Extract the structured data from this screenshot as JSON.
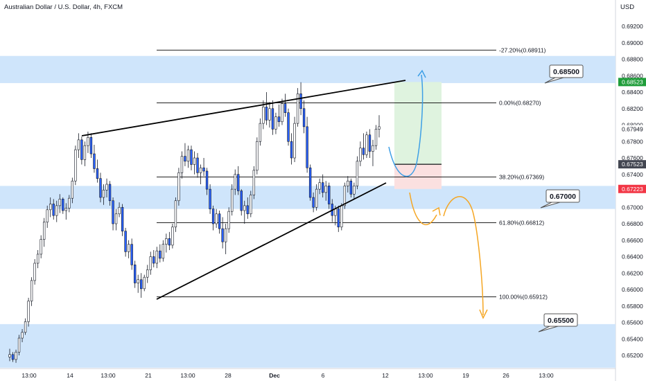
{
  "header": {
    "title": "Australian Dollar / U.S. Dollar, 4h, FXCM",
    "currency": "USD"
  },
  "colors": {
    "zone": "#cfe5fb",
    "up": "#ffffff",
    "down": "#2962ff",
    "wick": "#131722",
    "target_zone": "#dff3df",
    "stop_zone": "#fbe0e0",
    "projection_blue": "#3d9fe6",
    "projection_orange": "#f5a623",
    "price_green": "#1f9d3a",
    "price_red": "#f23645",
    "price_dark": "#434651",
    "axis_text": "#131722",
    "fib_line": "#000000"
  },
  "chart_data": {
    "type": "candlestick",
    "title": "Australian Dollar / U.S. Dollar, 4h, FXCM",
    "ylim": [
      0.651,
      0.6937
    ],
    "y_ticks": [
      "0.69200",
      "0.69000",
      "0.68800",
      "0.68600",
      "0.68400",
      "0.68200",
      "0.68000",
      "0.67800",
      "0.67600",
      "0.67400",
      "0.67200",
      "0.67000",
      "0.66800",
      "0.66600",
      "0.66400",
      "0.66200",
      "0.66000",
      "0.65800",
      "0.65600",
      "0.65400",
      "0.65200"
    ],
    "x_ticks": [
      "13:00",
      "14",
      "13:00",
      "21",
      "13:00",
      "28",
      "Dec",
      "6",
      "12",
      "13:00",
      "19",
      "26",
      "13:00"
    ],
    "x_ticks_bold": [
      "Dec"
    ],
    "zones": [
      {
        "label": "0.68500",
        "from": 0.6851,
        "to": 0.6884
      },
      {
        "label": "0.67000",
        "from": 0.6698,
        "to": 0.6726
      },
      {
        "label": "0.65500",
        "from": 0.6505,
        "to": 0.6558
      }
    ],
    "fibonacci": [
      {
        "label": "-27.20%(0.68911)",
        "price": 0.68911
      },
      {
        "label": "0.00%(0.68270)",
        "price": 0.6827
      },
      {
        "label": "38.20%(0.67369)",
        "price": 0.67369
      },
      {
        "label": "61.80%(0.66812)",
        "price": 0.66812
      },
      {
        "label": "100.00%(0.65912)",
        "price": 0.65912
      }
    ],
    "price_tags": [
      {
        "label": "0.68523",
        "price": 0.68523,
        "style": "green"
      },
      {
        "label": "0.67949",
        "price": 0.67949,
        "style": "plain"
      },
      {
        "label": "0.67523",
        "price": 0.67523,
        "style": "dark"
      },
      {
        "label": "0.67223",
        "price": 0.67223,
        "style": "red"
      }
    ],
    "position": {
      "entry": 0.67523,
      "target": 0.68523,
      "stop": 0.67223
    },
    "wedge": {
      "upper": [
        [
          0.6887,
          0.6852
        ]
      ],
      "lower": [
        [
          0.6588,
          0.6727
        ]
      ]
    },
    "candles": [
      [
        0.6518,
        0.6528,
        0.6513,
        0.6521
      ],
      [
        0.6521,
        0.6524,
        0.6512,
        0.6515
      ],
      [
        0.6515,
        0.6527,
        0.6511,
        0.6524
      ],
      [
        0.6524,
        0.6545,
        0.652,
        0.6541
      ],
      [
        0.6541,
        0.6552,
        0.6536,
        0.6548
      ],
      [
        0.6548,
        0.6565,
        0.6545,
        0.6561
      ],
      [
        0.6561,
        0.659,
        0.6555,
        0.6586
      ],
      [
        0.6586,
        0.6615,
        0.658,
        0.6611
      ],
      [
        0.6611,
        0.6637,
        0.6606,
        0.6632
      ],
      [
        0.6632,
        0.6648,
        0.6626,
        0.6643
      ],
      [
        0.6643,
        0.6666,
        0.6638,
        0.6661
      ],
      [
        0.6661,
        0.6687,
        0.6652,
        0.6682
      ],
      [
        0.6682,
        0.6702,
        0.6675,
        0.6697
      ],
      [
        0.6697,
        0.6712,
        0.6688,
        0.6704
      ],
      [
        0.6704,
        0.671,
        0.6685,
        0.669
      ],
      [
        0.669,
        0.6708,
        0.6682,
        0.6702
      ],
      [
        0.6702,
        0.6716,
        0.6693,
        0.671
      ],
      [
        0.671,
        0.6712,
        0.6692,
        0.6696
      ],
      [
        0.6696,
        0.6705,
        0.6685,
        0.6699
      ],
      [
        0.6699,
        0.6715,
        0.6694,
        0.6711
      ],
      [
        0.6711,
        0.6736,
        0.6705,
        0.6732
      ],
      [
        0.6732,
        0.6775,
        0.6727,
        0.677
      ],
      [
        0.677,
        0.679,
        0.676,
        0.6782
      ],
      [
        0.6782,
        0.6786,
        0.6752,
        0.6758
      ],
      [
        0.6758,
        0.678,
        0.675,
        0.6775
      ],
      [
        0.6775,
        0.6792,
        0.6766,
        0.6785
      ],
      [
        0.6785,
        0.679,
        0.676,
        0.6765
      ],
      [
        0.6765,
        0.6776,
        0.6742,
        0.6747
      ],
      [
        0.6747,
        0.6758,
        0.673,
        0.6735
      ],
      [
        0.6735,
        0.6742,
        0.6706,
        0.6712
      ],
      [
        0.6712,
        0.6728,
        0.6703,
        0.6721
      ],
      [
        0.6721,
        0.6735,
        0.6712,
        0.6728
      ],
      [
        0.6728,
        0.6732,
        0.6702,
        0.6708
      ],
      [
        0.6708,
        0.6712,
        0.6672,
        0.668
      ],
      [
        0.668,
        0.6698,
        0.6672,
        0.6692
      ],
      [
        0.6692,
        0.6706,
        0.6688,
        0.67
      ],
      [
        0.67,
        0.6704,
        0.6665,
        0.6671
      ],
      [
        0.6671,
        0.6675,
        0.664,
        0.6646
      ],
      [
        0.6646,
        0.666,
        0.6638,
        0.6655
      ],
      [
        0.6655,
        0.6662,
        0.6624,
        0.663
      ],
      [
        0.663,
        0.6635,
        0.6602,
        0.6608
      ],
      [
        0.6608,
        0.6618,
        0.6596,
        0.6612
      ],
      [
        0.6612,
        0.662,
        0.659,
        0.6601
      ],
      [
        0.6601,
        0.6618,
        0.6598,
        0.6615
      ],
      [
        0.6615,
        0.663,
        0.6608,
        0.6624
      ],
      [
        0.6624,
        0.6646,
        0.6618,
        0.664
      ],
      [
        0.664,
        0.6648,
        0.6627,
        0.6632
      ],
      [
        0.6632,
        0.6652,
        0.6626,
        0.6647
      ],
      [
        0.6647,
        0.6655,
        0.6633,
        0.6638
      ],
      [
        0.6638,
        0.666,
        0.6634,
        0.6655
      ],
      [
        0.6655,
        0.6668,
        0.6645,
        0.6662
      ],
      [
        0.6662,
        0.667,
        0.6648,
        0.6654
      ],
      [
        0.6654,
        0.668,
        0.665,
        0.6676
      ],
      [
        0.6676,
        0.6712,
        0.667,
        0.6708
      ],
      [
        0.6708,
        0.6748,
        0.6702,
        0.6742
      ],
      [
        0.6742,
        0.6768,
        0.6735,
        0.6762
      ],
      [
        0.6762,
        0.6778,
        0.675,
        0.6756
      ],
      [
        0.6756,
        0.6775,
        0.6748,
        0.677
      ],
      [
        0.677,
        0.6775,
        0.6745,
        0.6752
      ],
      [
        0.6752,
        0.6768,
        0.674,
        0.676
      ],
      [
        0.676,
        0.6766,
        0.6736,
        0.6742
      ],
      [
        0.6742,
        0.6752,
        0.6728,
        0.6748
      ],
      [
        0.6748,
        0.676,
        0.6738,
        0.6744
      ],
      [
        0.6744,
        0.6748,
        0.6715,
        0.6722
      ],
      [
        0.6722,
        0.6728,
        0.6692,
        0.6698
      ],
      [
        0.6698,
        0.6702,
        0.6672,
        0.668
      ],
      [
        0.668,
        0.6698,
        0.6675,
        0.6692
      ],
      [
        0.6692,
        0.6696,
        0.6668,
        0.6674
      ],
      [
        0.6674,
        0.6688,
        0.665,
        0.6658
      ],
      [
        0.6658,
        0.668,
        0.6643,
        0.6674
      ],
      [
        0.6674,
        0.67,
        0.6669,
        0.6695
      ],
      [
        0.6695,
        0.6728,
        0.669,
        0.6722
      ],
      [
        0.6722,
        0.6746,
        0.6715,
        0.674
      ],
      [
        0.674,
        0.675,
        0.6715,
        0.672
      ],
      [
        0.672,
        0.6722,
        0.669,
        0.6696
      ],
      [
        0.6696,
        0.6708,
        0.668,
        0.6702
      ],
      [
        0.6702,
        0.6712,
        0.6686,
        0.6692
      ],
      [
        0.6692,
        0.672,
        0.6688,
        0.6715
      ],
      [
        0.6715,
        0.675,
        0.671,
        0.6745
      ],
      [
        0.6745,
        0.6785,
        0.674,
        0.678
      ],
      [
        0.678,
        0.6808,
        0.6775,
        0.6802
      ],
      [
        0.6802,
        0.683,
        0.6795,
        0.6822
      ],
      [
        0.6822,
        0.684,
        0.68,
        0.6806
      ],
      [
        0.6806,
        0.6828,
        0.6797,
        0.682
      ],
      [
        0.682,
        0.683,
        0.6788,
        0.6795
      ],
      [
        0.6795,
        0.6815,
        0.6789,
        0.681
      ],
      [
        0.681,
        0.6825,
        0.6798,
        0.6804
      ],
      [
        0.6804,
        0.6832,
        0.68,
        0.6826
      ],
      [
        0.6826,
        0.6838,
        0.681,
        0.6815
      ],
      [
        0.6815,
        0.682,
        0.6775,
        0.678
      ],
      [
        0.678,
        0.679,
        0.6752,
        0.676
      ],
      [
        0.676,
        0.681,
        0.6755,
        0.6802
      ],
      [
        0.6802,
        0.6845,
        0.6798,
        0.6838
      ],
      [
        0.6838,
        0.6852,
        0.6812,
        0.682
      ],
      [
        0.682,
        0.683,
        0.679,
        0.6798
      ],
      [
        0.6798,
        0.681,
        0.6742,
        0.6748
      ],
      [
        0.6748,
        0.6752,
        0.6708,
        0.6712
      ],
      [
        0.6712,
        0.6718,
        0.6694,
        0.67
      ],
      [
        0.67,
        0.6728,
        0.6696,
        0.6722
      ],
      [
        0.6722,
        0.6735,
        0.6716,
        0.673
      ],
      [
        0.673,
        0.674,
        0.6712,
        0.6718
      ],
      [
        0.6718,
        0.6732,
        0.6708,
        0.6726
      ],
      [
        0.6726,
        0.673,
        0.6698,
        0.6704
      ],
      [
        0.6704,
        0.671,
        0.6682,
        0.669
      ],
      [
        0.669,
        0.6702,
        0.6678,
        0.6698
      ],
      [
        0.6698,
        0.6702,
        0.667,
        0.6676
      ],
      [
        0.6676,
        0.6705,
        0.6672,
        0.6702
      ],
      [
        0.6702,
        0.673,
        0.6698,
        0.6726
      ],
      [
        0.6726,
        0.6738,
        0.6718,
        0.6732
      ],
      [
        0.6732,
        0.6735,
        0.6712,
        0.6716
      ],
      [
        0.6716,
        0.673,
        0.671,
        0.6726
      ],
      [
        0.6726,
        0.6762,
        0.6722,
        0.6756
      ],
      [
        0.6756,
        0.678,
        0.675,
        0.6772
      ],
      [
        0.6772,
        0.679,
        0.6758,
        0.6764
      ],
      [
        0.6764,
        0.6792,
        0.676,
        0.6788
      ],
      [
        0.6788,
        0.6795,
        0.676,
        0.6768
      ],
      [
        0.6768,
        0.6782,
        0.675,
        0.6775
      ],
      [
        0.6775,
        0.68,
        0.677,
        0.6795
      ],
      [
        0.6795,
        0.6812,
        0.6785,
        0.6798
      ]
    ]
  },
  "annotations": [
    {
      "label": "0.68500"
    },
    {
      "label": "0.67000"
    },
    {
      "label": "0.65500"
    }
  ]
}
